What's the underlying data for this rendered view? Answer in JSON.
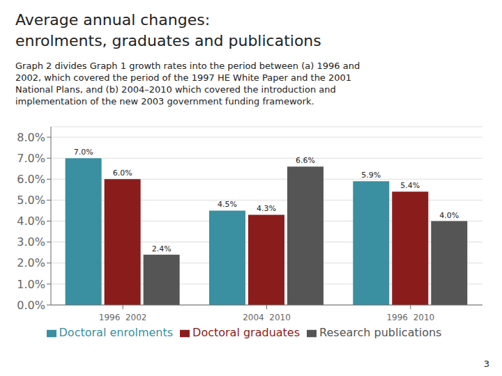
{
  "chart_data": {
    "type": "bar",
    "title": "Average annual changes:\nenrolments, graduates and publications",
    "subtitle": "Graph 2 divides Graph 1 growth rates into the period between (a) 1996 and\n2002, which covered the period of the 1997 HE White Paper and the 2001\nNational Plans, and (b) 2004–2010 which covered the introduction and\nimplementation of the new 2003 government funding framework.",
    "annotations": [
      "3"
    ],
    "categories": [
      "1996  2002",
      "2004  2010",
      "1996  2010"
    ],
    "series": [
      {
        "name": "Doctoral enrolments",
        "color": "#3a8fa0",
        "values": [
          7.0,
          4.5,
          5.9
        ],
        "value_labels": [
          "7.0%",
          "4.5%",
          "5.9%"
        ]
      },
      {
        "name": "Doctoral graduates",
        "color": "#8b1c1c",
        "values": [
          6.0,
          4.3,
          5.4
        ],
        "value_labels": [
          "6.0%",
          "4.3%",
          "5.4%"
        ]
      },
      {
        "name": "Research publications",
        "color": "#555555",
        "values": [
          2.4,
          6.6,
          4.0
        ],
        "value_labels": [
          "2.4%",
          "6.6%",
          "4.0%"
        ]
      }
    ],
    "ylim": [
      0,
      8.5
    ],
    "yticks": [
      {
        "value": 0.0,
        "label": "0.0%"
      },
      {
        "value": 1.0,
        "label": "1.0%"
      },
      {
        "value": 2.0,
        "label": "2.0%"
      },
      {
        "value": 3.0,
        "label": "3.0%"
      },
      {
        "value": 4.0,
        "label": "4.0%"
      },
      {
        "value": 5.0,
        "label": "5.0%"
      },
      {
        "value": 6.0,
        "label": "6.0%"
      },
      {
        "value": 7.0,
        "label": "7.0%"
      },
      {
        "value": 8.0,
        "label": "8.0%"
      }
    ],
    "grid": true,
    "legend": "bottom",
    "data_labels": true
  }
}
